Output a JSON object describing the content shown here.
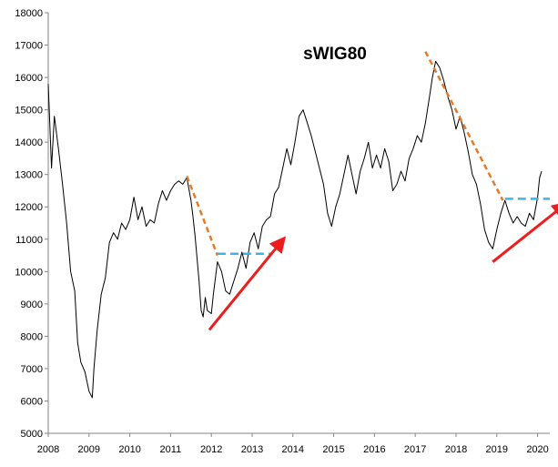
{
  "chart_data": {
    "type": "line",
    "title": "sWIG80",
    "xlabel": "",
    "ylabel": "",
    "xlim": [
      2008,
      2020.3
    ],
    "ylim": [
      5000,
      18000
    ],
    "x_ticks": [
      2008,
      2009,
      2010,
      2011,
      2012,
      2013,
      2014,
      2015,
      2016,
      2017,
      2018,
      2019,
      2020
    ],
    "x_tick_labels": [
      "2008",
      "2009",
      "2010",
      "2011",
      "2012",
      "2013",
      "2014",
      "2015",
      "2016",
      "2017",
      "2018",
      "2019",
      "2020"
    ],
    "y_ticks": [
      5000,
      6000,
      7000,
      8000,
      9000,
      10000,
      11000,
      12000,
      13000,
      14000,
      15000,
      16000,
      17000,
      18000
    ],
    "y_tick_labels": [
      "5000",
      "6000",
      "7000",
      "8000",
      "9000",
      "10000",
      "11000",
      "12000",
      "13000",
      "14000",
      "15000",
      "16000",
      "17000",
      "18000"
    ],
    "grid": false,
    "legend": "none",
    "series": [
      {
        "color": "#000000",
        "x": [
          2008.0,
          2008.08,
          2008.15,
          2008.25,
          2008.35,
          2008.45,
          2008.55,
          2008.65,
          2008.72,
          2008.8,
          2008.9,
          2009.0,
          2009.08,
          2009.12,
          2009.2,
          2009.3,
          2009.4,
          2009.5,
          2009.6,
          2009.7,
          2009.8,
          2009.9,
          2010.0,
          2010.1,
          2010.2,
          2010.3,
          2010.4,
          2010.5,
          2010.6,
          2010.7,
          2010.8,
          2010.9,
          2011.0,
          2011.1,
          2011.2,
          2011.3,
          2011.4,
          2011.5,
          2011.55,
          2011.6,
          2011.7,
          2011.75,
          2011.8,
          2011.85,
          2011.9,
          2012.0,
          2012.05,
          2012.15,
          2012.25,
          2012.35,
          2012.45,
          2012.55,
          2012.65,
          2012.75,
          2012.85,
          2012.95,
          2013.05,
          2013.15,
          2013.25,
          2013.35,
          2013.45,
          2013.55,
          2013.65,
          2013.75,
          2013.85,
          2013.95,
          2014.05,
          2014.15,
          2014.25,
          2014.35,
          2014.45,
          2014.55,
          2014.65,
          2014.75,
          2014.85,
          2014.95,
          2015.05,
          2015.15,
          2015.25,
          2015.35,
          2015.45,
          2015.55,
          2015.65,
          2015.75,
          2015.85,
          2015.95,
          2016.05,
          2016.15,
          2016.25,
          2016.35,
          2016.45,
          2016.55,
          2016.65,
          2016.75,
          2016.85,
          2016.95,
          2017.05,
          2017.15,
          2017.25,
          2017.35,
          2017.42,
          2017.5,
          2017.6,
          2017.7,
          2017.8,
          2017.9,
          2018.0,
          2018.1,
          2018.2,
          2018.3,
          2018.4,
          2018.5,
          2018.6,
          2018.7,
          2018.8,
          2018.9,
          2019.0,
          2019.1,
          2019.2,
          2019.3,
          2019.4,
          2019.5,
          2019.6,
          2019.7,
          2019.8,
          2019.9,
          2020.0,
          2020.05,
          2020.1
        ],
        "values": [
          15800,
          13200,
          14800,
          13800,
          12700,
          11500,
          10000,
          9400,
          7800,
          7200,
          6900,
          6300,
          6100,
          7000,
          8200,
          9300,
          9800,
          10900,
          11200,
          11000,
          11500,
          11300,
          11600,
          12300,
          11600,
          12000,
          11400,
          11600,
          11500,
          12100,
          12500,
          12200,
          12500,
          12700,
          12800,
          12700,
          12900,
          12200,
          11700,
          11100,
          9700,
          8800,
          8600,
          9200,
          8800,
          8700,
          9300,
          10300,
          10000,
          9400,
          9300,
          9700,
          10100,
          10600,
          10100,
          10900,
          11200,
          10700,
          11400,
          11600,
          11700,
          12400,
          12600,
          13200,
          13800,
          13300,
          14000,
          14800,
          15000,
          14600,
          14200,
          13700,
          13200,
          12700,
          11800,
          11400,
          12000,
          12400,
          13000,
          13600,
          13000,
          12400,
          13100,
          13500,
          14000,
          13200,
          13600,
          13200,
          13800,
          13400,
          12500,
          12700,
          13100,
          12800,
          13500,
          13800,
          14200,
          14000,
          14600,
          15400,
          16000,
          16500,
          16300,
          15900,
          15400,
          15000,
          14400,
          14800,
          14300,
          13700,
          13000,
          12700,
          12100,
          11300,
          10900,
          10700,
          11300,
          11800,
          12200,
          11800,
          11500,
          11700,
          11500,
          11400,
          11800,
          11600,
          12300,
          12900,
          13100
        ]
      }
    ],
    "annotations": [
      {
        "kind": "dashed-line",
        "color": "#e47a2a",
        "x": [
          2011.4,
          2012.15
        ],
        "y": [
          12950,
          10500
        ]
      },
      {
        "kind": "dashed-line",
        "color": "#3db4e8",
        "x": [
          2012.15,
          2013.5
        ],
        "y": [
          10550,
          10550
        ]
      },
      {
        "kind": "arrow",
        "color": "#ee1c1c",
        "x": [
          2011.95,
          2013.7
        ],
        "y": [
          8200,
          10900
        ]
      },
      {
        "kind": "dashed-line",
        "color": "#e47a2a",
        "x": [
          2017.25,
          2019.15
        ],
        "y": [
          16800,
          12200
        ]
      },
      {
        "kind": "dashed-line",
        "color": "#3db4e8",
        "x": [
          2019.2,
          2020.3
        ],
        "y": [
          12250,
          12250
        ]
      },
      {
        "kind": "arrow",
        "color": "#ee1c1c",
        "x": [
          2018.9,
          2020.6
        ],
        "y": [
          10300,
          12000
        ]
      }
    ]
  }
}
